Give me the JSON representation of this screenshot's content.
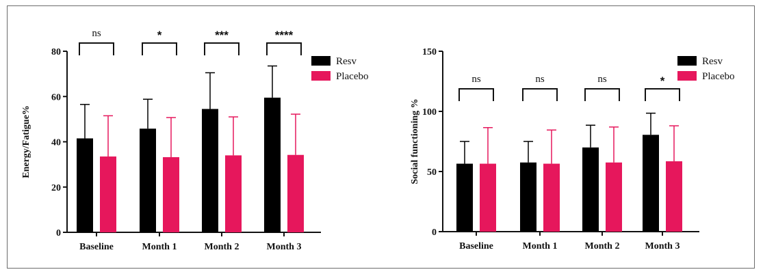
{
  "chart_data": [
    {
      "type": "bar",
      "ylabel": "Energy/Fatigue%",
      "ylim": [
        0,
        80
      ],
      "yticks": [
        0,
        20,
        40,
        60,
        80
      ],
      "categories": [
        "Baseline",
        "Month 1",
        "Month 2",
        "Month 3"
      ],
      "series": [
        {
          "name": "Resv",
          "color": "#000000",
          "values": [
            41.5,
            45.8,
            54.5,
            59.5
          ],
          "error": [
            15.0,
            13.0,
            16.0,
            14.0
          ]
        },
        {
          "name": "Placebo",
          "color": "#e6175c",
          "values": [
            33.5,
            33.2,
            34.0,
            34.2
          ],
          "error": [
            18.0,
            17.5,
            17.0,
            18.0
          ]
        }
      ],
      "significance": [
        "ns",
        "*",
        "***",
        "****"
      ],
      "legend": "top-right"
    },
    {
      "type": "bar",
      "ylabel": "Social functioning %",
      "ylim": [
        0,
        150
      ],
      "yticks": [
        0,
        50,
        100,
        150
      ],
      "categories": [
        "Baseline",
        "Month 1",
        "Month 2",
        "Month 3"
      ],
      "series": [
        {
          "name": "Resv",
          "color": "#000000",
          "values": [
            56.5,
            57.5,
            70.0,
            80.5
          ],
          "error": [
            18.5,
            17.5,
            18.5,
            18.0
          ]
        },
        {
          "name": "Placebo",
          "color": "#e6175c",
          "values": [
            56.5,
            56.5,
            57.5,
            58.5
          ],
          "error": [
            30.0,
            28.0,
            29.5,
            29.5
          ]
        }
      ],
      "significance": [
        "ns",
        "ns",
        "ns",
        "*"
      ],
      "legend": "top-right"
    }
  ]
}
